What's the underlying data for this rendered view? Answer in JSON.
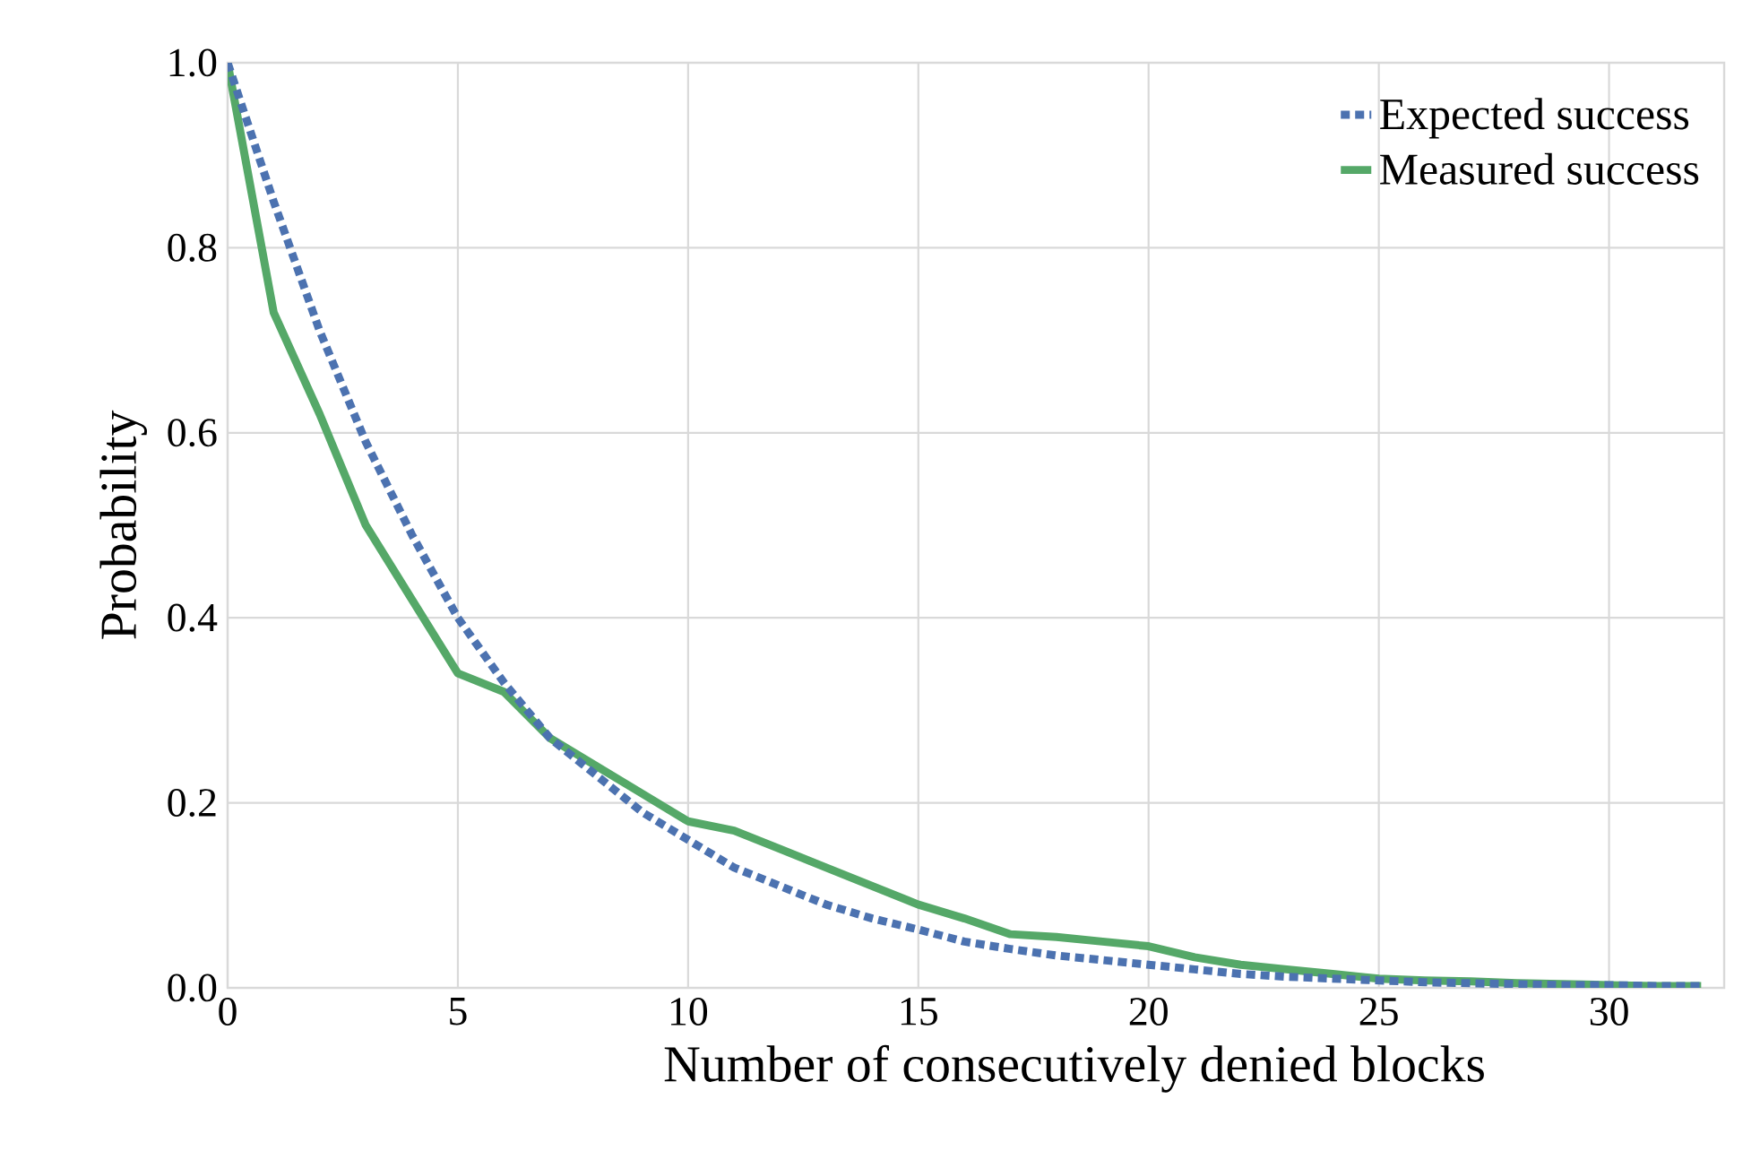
{
  "chart_data": {
    "type": "line",
    "xlabel": "Number of consecutively denied blocks",
    "ylabel": "Probability",
    "x": [
      0,
      1,
      2,
      3,
      4,
      5,
      6,
      7,
      8,
      9,
      10,
      11,
      12,
      13,
      14,
      15,
      16,
      17,
      18,
      19,
      20,
      21,
      22,
      23,
      24,
      25,
      26,
      27,
      28,
      29,
      30,
      31,
      32
    ],
    "series": [
      {
        "name": "Expected success",
        "color": "#4c72b0",
        "line_style": "dashed",
        "values": [
          1.0,
          0.85,
          0.71,
          0.59,
          0.49,
          0.4,
          0.33,
          0.27,
          0.23,
          0.19,
          0.16,
          0.13,
          0.11,
          0.09,
          0.075,
          0.063,
          0.05,
          0.042,
          0.035,
          0.03,
          0.025,
          0.02,
          0.015,
          0.012,
          0.01,
          0.008,
          0.006,
          0.005,
          0.004,
          0.003,
          0.003,
          0.002,
          0.002
        ]
      },
      {
        "name": "Measured success",
        "color": "#55a868",
        "line_style": "solid",
        "values": [
          1.0,
          0.73,
          0.62,
          0.5,
          0.42,
          0.34,
          0.32,
          0.27,
          0.24,
          0.21,
          0.18,
          0.17,
          0.15,
          0.13,
          0.11,
          0.09,
          0.075,
          0.058,
          0.055,
          0.05,
          0.045,
          0.033,
          0.025,
          0.02,
          0.015,
          0.01,
          0.008,
          0.007,
          0.005,
          0.004,
          0.003,
          0.002,
          0.002
        ]
      }
    ],
    "xlim": [
      0,
      32.5
    ],
    "xticks": [
      0,
      5,
      10,
      15,
      20,
      25,
      30
    ],
    "ylim": [
      0,
      1.0
    ],
    "yticks": [
      {
        "value": 0,
        "label": "0.0"
      },
      {
        "value": 0.2,
        "label": "0.2"
      },
      {
        "value": 0.4,
        "label": "0.4"
      },
      {
        "value": 0.6,
        "label": "0.6"
      },
      {
        "value": 0.8,
        "label": "0.8"
      },
      {
        "value": 1.0,
        "label": "1.0"
      }
    ],
    "grid": true,
    "legend": "top right",
    "marker": "none"
  }
}
